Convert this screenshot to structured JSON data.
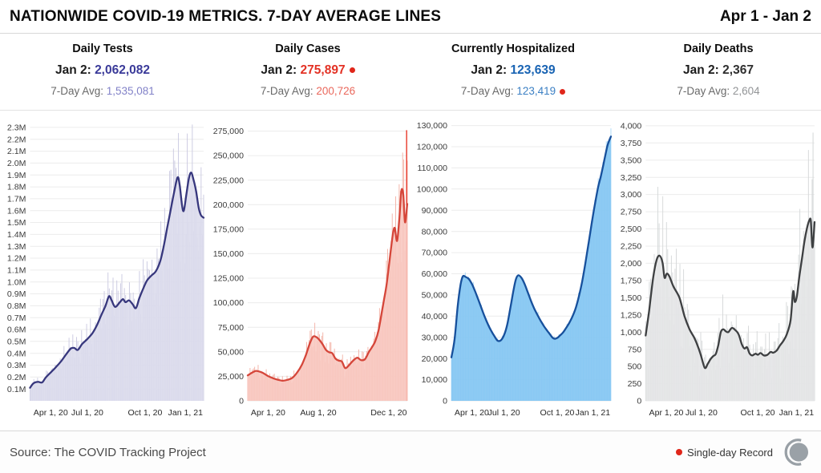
{
  "header": {
    "title": "NATIONWIDE COVID-19 METRICS. 7-DAY AVERAGE LINES",
    "date_range": "Apr 1 - Jan 2"
  },
  "footer": {
    "source": "Source: The COVID Tracking Project",
    "record_legend": "Single-day Record",
    "record_color": "#e0261a"
  },
  "chart_data": [
    {
      "id": "daily-tests",
      "type": "area",
      "title": "Daily Tests",
      "stats": {
        "latest_label": "Jan 2:",
        "latest_value": "2,062,082",
        "latest_record": false,
        "avg_label": "7-Day Avg:",
        "avg_value": "1,535,081",
        "avg_record": false
      },
      "colors": {
        "latest": "#3a3a99",
        "avg": "#8282c8",
        "line": "#37377d",
        "fill": "#dcdbec",
        "bars": "#c9c8e0"
      },
      "ylim": [
        0,
        2360000
      ],
      "y_ticks": [
        [
          100000,
          "0.1M"
        ],
        [
          200000,
          "0.2M"
        ],
        [
          300000,
          "0.3M"
        ],
        [
          400000,
          "0.4M"
        ],
        [
          500000,
          "0.5M"
        ],
        [
          600000,
          "0.6M"
        ],
        [
          700000,
          "0.7M"
        ],
        [
          800000,
          "0.8M"
        ],
        [
          900000,
          "0.9M"
        ],
        [
          1000000,
          "1.0M"
        ],
        [
          1100000,
          "1.1M"
        ],
        [
          1200000,
          "1.2M"
        ],
        [
          1300000,
          "1.3M"
        ],
        [
          1400000,
          "1.4M"
        ],
        [
          1500000,
          "1.5M"
        ],
        [
          1600000,
          "1.6M"
        ],
        [
          1700000,
          "1.7M"
        ],
        [
          1800000,
          "1.8M"
        ],
        [
          1900000,
          "1.9M"
        ],
        [
          2000000,
          "2.0M"
        ],
        [
          2100000,
          "2.1M"
        ],
        [
          2200000,
          "2.2M"
        ],
        [
          2300000,
          "2.3M"
        ]
      ],
      "x_ticks": [
        {
          "f": 0.02,
          "label": "Apr 1, 20",
          "anchor": "start"
        },
        {
          "f": 0.33,
          "label": "Jul 1, 20",
          "anchor": "middle"
        },
        {
          "f": 0.663,
          "label": "Oct 1, 20",
          "anchor": "middle"
        },
        {
          "f": 0.996,
          "label": "Jan 1, 21",
          "anchor": "end"
        }
      ],
      "avg_line": [
        [
          0,
          110000
        ],
        [
          0.02,
          148000
        ],
        [
          0.045,
          160000
        ],
        [
          0.07,
          155000
        ],
        [
          0.09,
          195000
        ],
        [
          0.12,
          240000
        ],
        [
          0.15,
          285000
        ],
        [
          0.18,
          335000
        ],
        [
          0.21,
          395000
        ],
        [
          0.235,
          440000
        ],
        [
          0.255,
          445000
        ],
        [
          0.275,
          428000
        ],
        [
          0.3,
          478000
        ],
        [
          0.33,
          520000
        ],
        [
          0.36,
          570000
        ],
        [
          0.385,
          635000
        ],
        [
          0.41,
          720000
        ],
        [
          0.435,
          800000
        ],
        [
          0.455,
          880000
        ],
        [
          0.47,
          845000
        ],
        [
          0.49,
          790000
        ],
        [
          0.515,
          825000
        ],
        [
          0.535,
          855000
        ],
        [
          0.55,
          830000
        ],
        [
          0.57,
          845000
        ],
        [
          0.59,
          815000
        ],
        [
          0.61,
          780000
        ],
        [
          0.63,
          865000
        ],
        [
          0.655,
          955000
        ],
        [
          0.675,
          1015000
        ],
        [
          0.7,
          1055000
        ],
        [
          0.725,
          1090000
        ],
        [
          0.75,
          1175000
        ],
        [
          0.77,
          1300000
        ],
        [
          0.79,
          1455000
        ],
        [
          0.81,
          1605000
        ],
        [
          0.83,
          1755000
        ],
        [
          0.85,
          1880000
        ],
        [
          0.862,
          1815000
        ],
        [
          0.876,
          1640000
        ],
        [
          0.886,
          1600000
        ],
        [
          0.9,
          1730000
        ],
        [
          0.915,
          1870000
        ],
        [
          0.928,
          1920000
        ],
        [
          0.942,
          1860000
        ],
        [
          0.957,
          1760000
        ],
        [
          0.972,
          1620000
        ],
        [
          0.985,
          1560000
        ],
        [
          1,
          1540000
        ]
      ],
      "bars": {
        "seed": 3,
        "weekly": 0.17,
        "jitter": 0.45,
        "lo": 0.5,
        "hi": 1.26
      },
      "extra_bars": []
    },
    {
      "id": "daily-cases",
      "type": "area",
      "title": "Daily Cases",
      "stats": {
        "latest_label": "Jan 2:",
        "latest_value": "275,897",
        "latest_record": true,
        "avg_label": "7-Day Avg:",
        "avg_value": "200,726",
        "avg_record": false
      },
      "colors": {
        "latest": "#e33225",
        "avg": "#ea685c",
        "line": "#d5463a",
        "fill": "#f8c9c1",
        "bars": "#f3b0a4",
        "record_bar": "#e8392b"
      },
      "ylim": [
        0,
        286000
      ],
      "y_ticks": [
        [
          0,
          "0"
        ],
        [
          25000,
          "25,000"
        ],
        [
          50000,
          "50,000"
        ],
        [
          75000,
          "75,000"
        ],
        [
          100000,
          "100,000"
        ],
        [
          125000,
          "125,000"
        ],
        [
          150000,
          "150,000"
        ],
        [
          175000,
          "175,000"
        ],
        [
          200000,
          "200,000"
        ],
        [
          225000,
          "225,000"
        ],
        [
          250000,
          "250,000"
        ],
        [
          275000,
          "275,000"
        ]
      ],
      "x_ticks": [
        {
          "f": 0.02,
          "label": "Apr 1, 20",
          "anchor": "start"
        },
        {
          "f": 0.442,
          "label": "Aug 1, 20",
          "anchor": "middle"
        },
        {
          "f": 0.884,
          "label": "Dec 1, 20",
          "anchor": "middle"
        }
      ],
      "avg_line": [
        [
          0,
          26000
        ],
        [
          0.02,
          28000
        ],
        [
          0.05,
          30500
        ],
        [
          0.08,
          29500
        ],
        [
          0.1,
          28000
        ],
        [
          0.13,
          25000
        ],
        [
          0.16,
          23000
        ],
        [
          0.19,
          21500
        ],
        [
          0.22,
          20500
        ],
        [
          0.25,
          21500
        ],
        [
          0.28,
          23500
        ],
        [
          0.31,
          29000
        ],
        [
          0.34,
          37000
        ],
        [
          0.365,
          47000
        ],
        [
          0.39,
          59000
        ],
        [
          0.41,
          65500
        ],
        [
          0.43,
          65000
        ],
        [
          0.45,
          62000
        ],
        [
          0.47,
          57500
        ],
        [
          0.49,
          52000
        ],
        [
          0.51,
          49500
        ],
        [
          0.53,
          48500
        ],
        [
          0.55,
          43000
        ],
        [
          0.57,
          41000
        ],
        [
          0.59,
          40000
        ],
        [
          0.61,
          33500
        ],
        [
          0.63,
          35500
        ],
        [
          0.655,
          40000
        ],
        [
          0.685,
          44000
        ],
        [
          0.71,
          41500
        ],
        [
          0.735,
          42500
        ],
        [
          0.76,
          50000
        ],
        [
          0.78,
          55000
        ],
        [
          0.8,
          61000
        ],
        [
          0.82,
          72000
        ],
        [
          0.84,
          90000
        ],
        [
          0.855,
          104000
        ],
        [
          0.87,
          118000
        ],
        [
          0.886,
          139000
        ],
        [
          0.9,
          158000
        ],
        [
          0.912,
          172000
        ],
        [
          0.922,
          176000
        ],
        [
          0.936,
          163000
        ],
        [
          0.95,
          185000
        ],
        [
          0.963,
          214000
        ],
        [
          0.975,
          210000
        ],
        [
          0.986,
          182000
        ],
        [
          1,
          200726
        ]
      ],
      "bars": {
        "seed": 11,
        "weekly": 0.14,
        "jitter": 0.4,
        "lo": 0.52,
        "hi": 1.22
      },
      "extra_bars": [
        {
          "f": 0.996,
          "v": 275897,
          "use_record_color": true,
          "w": 1.4
        }
      ]
    },
    {
      "id": "currently-hospitalized",
      "type": "area",
      "title": "Currently Hospitalized",
      "stats": {
        "latest_label": "Jan 2:",
        "latest_value": "123,639",
        "latest_record": false,
        "avg_label": "7-Day Avg:",
        "avg_value": "123,419",
        "avg_record": true
      },
      "colors": {
        "latest": "#1863b3",
        "avg": "#3c80c4",
        "line": "#17509c",
        "fill": "#85c6f2",
        "bars": "#a9d8f7"
      },
      "ylim": [
        0,
        132500
      ],
      "y_ticks": [
        [
          0,
          "0"
        ],
        [
          10000,
          "10,000"
        ],
        [
          20000,
          "20,000"
        ],
        [
          30000,
          "30,000"
        ],
        [
          40000,
          "40,000"
        ],
        [
          50000,
          "50,000"
        ],
        [
          60000,
          "60,000"
        ],
        [
          70000,
          "70,000"
        ],
        [
          80000,
          "80,000"
        ],
        [
          90000,
          "90,000"
        ],
        [
          100000,
          "100,000"
        ],
        [
          110000,
          "110,000"
        ],
        [
          120000,
          "120,000"
        ],
        [
          130000,
          "130,000"
        ]
      ],
      "x_ticks": [
        {
          "f": 0.02,
          "label": "Apr 1, 20",
          "anchor": "start"
        },
        {
          "f": 0.33,
          "label": "Jul 1, 20",
          "anchor": "middle"
        },
        {
          "f": 0.663,
          "label": "Oct 1, 20",
          "anchor": "middle"
        },
        {
          "f": 0.996,
          "label": "Jan 1, 21",
          "anchor": "end"
        }
      ],
      "avg_line": [
        [
          0,
          20500
        ],
        [
          0.02,
          29000
        ],
        [
          0.04,
          45000
        ],
        [
          0.058,
          55000
        ],
        [
          0.072,
          58800
        ],
        [
          0.09,
          58500
        ],
        [
          0.11,
          57500
        ],
        [
          0.13,
          55000
        ],
        [
          0.15,
          51500
        ],
        [
          0.17,
          47500
        ],
        [
          0.19,
          43500
        ],
        [
          0.21,
          39500
        ],
        [
          0.23,
          36000
        ],
        [
          0.25,
          33000
        ],
        [
          0.27,
          30500
        ],
        [
          0.29,
          28400
        ],
        [
          0.31,
          28600
        ],
        [
          0.33,
          31000
        ],
        [
          0.35,
          36000
        ],
        [
          0.37,
          44000
        ],
        [
          0.39,
          52500
        ],
        [
          0.405,
          57500
        ],
        [
          0.42,
          59300
        ],
        [
          0.44,
          58000
        ],
        [
          0.46,
          55000
        ],
        [
          0.48,
          51000
        ],
        [
          0.5,
          47000
        ],
        [
          0.52,
          43500
        ],
        [
          0.54,
          40500
        ],
        [
          0.56,
          37800
        ],
        [
          0.58,
          35300
        ],
        [
          0.6,
          33200
        ],
        [
          0.62,
          31200
        ],
        [
          0.635,
          29800
        ],
        [
          0.65,
          29300
        ],
        [
          0.665,
          29800
        ],
        [
          0.68,
          30800
        ],
        [
          0.7,
          32300
        ],
        [
          0.72,
          34500
        ],
        [
          0.74,
          37000
        ],
        [
          0.76,
          40000
        ],
        [
          0.78,
          44000
        ],
        [
          0.8,
          49500
        ],
        [
          0.82,
          56500
        ],
        [
          0.84,
          65000
        ],
        [
          0.86,
          74500
        ],
        [
          0.88,
          84000
        ],
        [
          0.9,
          93000
        ],
        [
          0.92,
          101000
        ],
        [
          0.935,
          105500
        ],
        [
          0.95,
          110500
        ],
        [
          0.965,
          116000
        ],
        [
          0.98,
          121000
        ],
        [
          1,
          124800
        ]
      ],
      "bars": {
        "seed": 5,
        "weekly": 0.02,
        "jitter": 0.06,
        "lo": 0.97,
        "hi": 1.05
      },
      "extra_bars": []
    },
    {
      "id": "daily-deaths",
      "type": "area",
      "title": "Daily Deaths",
      "stats": {
        "latest_label": "Jan 2:",
        "latest_value": "2,367",
        "latest_record": false,
        "avg_label": "7-Day Avg:",
        "avg_value": "2,604",
        "avg_record": false
      },
      "colors": {
        "latest": "#2f2f2f",
        "avg": "#939597",
        "line": "#3e4042",
        "fill": "#e4e6e7",
        "bars": "#d4d7d8"
      },
      "ylim": [
        0,
        4080
      ],
      "y_ticks": [
        [
          0,
          "0"
        ],
        [
          250,
          "250"
        ],
        [
          500,
          "500"
        ],
        [
          750,
          "750"
        ],
        [
          1000,
          "1,000"
        ],
        [
          1250,
          "1,250"
        ],
        [
          1500,
          "1,500"
        ],
        [
          1750,
          "1,750"
        ],
        [
          2000,
          "2,000"
        ],
        [
          2250,
          "2,250"
        ],
        [
          2500,
          "2,500"
        ],
        [
          2750,
          "2,750"
        ],
        [
          3000,
          "3,000"
        ],
        [
          3250,
          "3,250"
        ],
        [
          3500,
          "3,500"
        ],
        [
          3750,
          "3,750"
        ],
        [
          4000,
          "4,000"
        ]
      ],
      "x_ticks": [
        {
          "f": 0.02,
          "label": "Apr 1, 20",
          "anchor": "start"
        },
        {
          "f": 0.33,
          "label": "Jul 1, 20",
          "anchor": "middle"
        },
        {
          "f": 0.663,
          "label": "Oct 1, 20",
          "anchor": "middle"
        },
        {
          "f": 0.996,
          "label": "Jan 1, 21",
          "anchor": "end"
        }
      ],
      "avg_line": [
        [
          0,
          950
        ],
        [
          0.02,
          1300
        ],
        [
          0.045,
          1800
        ],
        [
          0.065,
          2050
        ],
        [
          0.083,
          2110
        ],
        [
          0.1,
          2010
        ],
        [
          0.112,
          1790
        ],
        [
          0.125,
          1850
        ],
        [
          0.14,
          1810
        ],
        [
          0.165,
          1660
        ],
        [
          0.2,
          1500
        ],
        [
          0.23,
          1230
        ],
        [
          0.26,
          1040
        ],
        [
          0.285,
          930
        ],
        [
          0.305,
          820
        ],
        [
          0.325,
          680
        ],
        [
          0.35,
          480
        ],
        [
          0.368,
          540
        ],
        [
          0.385,
          610
        ],
        [
          0.4,
          650
        ],
        [
          0.415,
          680
        ],
        [
          0.43,
          810
        ],
        [
          0.445,
          1000
        ],
        [
          0.46,
          1040
        ],
        [
          0.475,
          1010
        ],
        [
          0.49,
          1000
        ],
        [
          0.51,
          1060
        ],
        [
          0.53,
          1030
        ],
        [
          0.55,
          970
        ],
        [
          0.57,
          820
        ],
        [
          0.585,
          760
        ],
        [
          0.6,
          780
        ],
        [
          0.615,
          690
        ],
        [
          0.63,
          660
        ],
        [
          0.65,
          685
        ],
        [
          0.665,
          670
        ],
        [
          0.68,
          695
        ],
        [
          0.7,
          660
        ],
        [
          0.72,
          668
        ],
        [
          0.74,
          712
        ],
        [
          0.755,
          700
        ],
        [
          0.775,
          730
        ],
        [
          0.795,
          805
        ],
        [
          0.815,
          870
        ],
        [
          0.835,
          965
        ],
        [
          0.858,
          1170
        ],
        [
          0.873,
          1590
        ],
        [
          0.883,
          1440
        ],
        [
          0.895,
          1520
        ],
        [
          0.91,
          1810
        ],
        [
          0.925,
          2060
        ],
        [
          0.94,
          2320
        ],
        [
          0.955,
          2510
        ],
        [
          0.97,
          2630
        ],
        [
          0.978,
          2610
        ],
        [
          0.988,
          2230
        ],
        [
          1,
          2600
        ]
      ],
      "bars": {
        "seed": 8,
        "weekly": 0.33,
        "jitter": 0.65,
        "lo": 0.18,
        "hi": 1.5
      },
      "extra_bars": [
        {
          "f": 0.991,
          "v": 3900,
          "use_record_color": false,
          "w": 1.0
        }
      ]
    }
  ]
}
